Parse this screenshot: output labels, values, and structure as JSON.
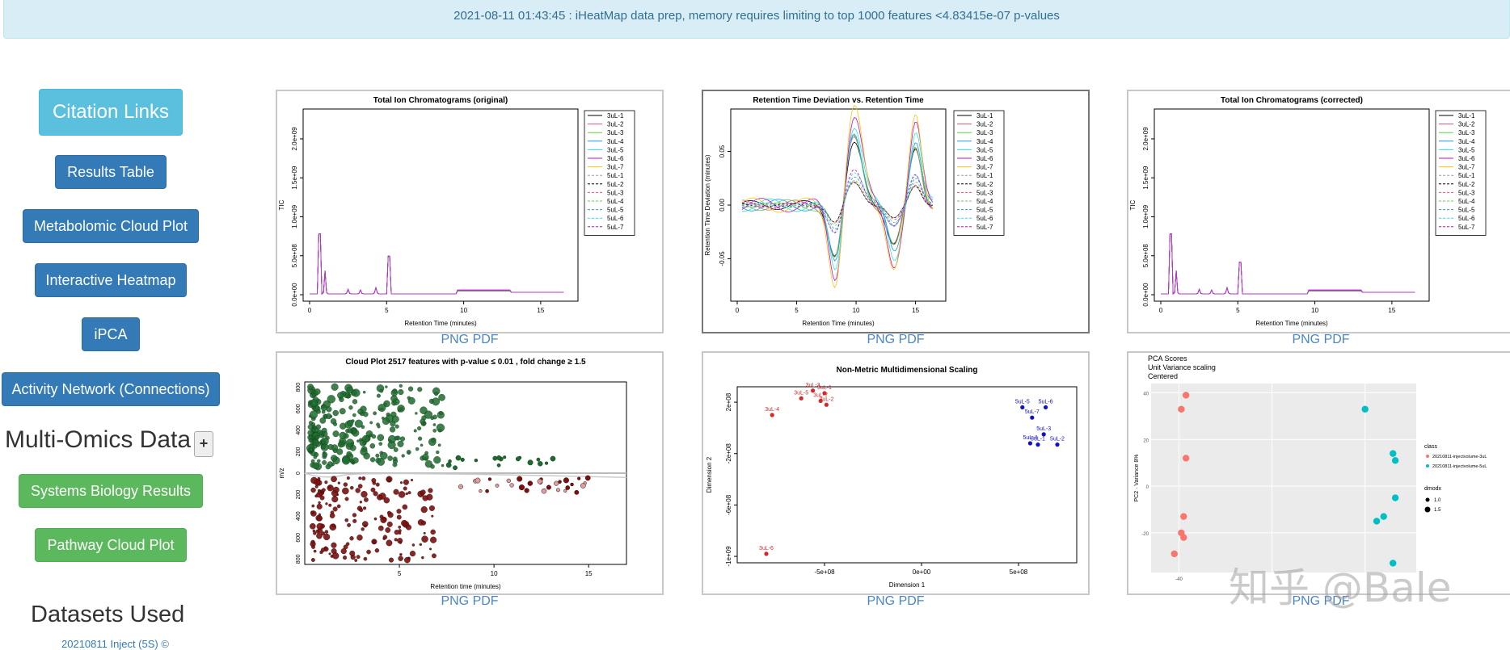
{
  "banner": {
    "message": "2021-08-11 01:43:45 : iHeatMap data prep, memory requires limiting to top 1000 features <4.83415e-07 p-values"
  },
  "sidebar": {
    "citation_label": "Citation Links",
    "results_table_label": "Results Table",
    "metabolomic_cloud_label": "Metabolomic Cloud Plot",
    "interactive_heatmap_label": "Interactive Heatmap",
    "ipca_label": "iPCA",
    "activity_network_label": "Activity Network (Connections)",
    "multi_omics_title": "Multi-Omics Data",
    "multi_omics_toggle": "+",
    "systems_biology_label": "Systems Biology Results",
    "pathway_cloud_label": "Pathway Cloud Plot",
    "datasets_title": "Datasets Used",
    "dataset_link": "20210811 Inject (5S) ©"
  },
  "colors": {
    "info_bg": "#d9edf7",
    "info_text": "#31708f",
    "primary": "#337ab7",
    "success": "#5cb85c",
    "citation": "#5bc0de",
    "link": "#4a86c6"
  },
  "links": {
    "png": "PNG",
    "pdf": "PDF"
  },
  "watermark": "知乎 @Bale",
  "legend_samples": [
    "3uL-1",
    "3uL-2",
    "3uL-3",
    "3uL-4",
    "3uL-5",
    "3uL-6",
    "3uL-7",
    "5uL-1",
    "5uL-2",
    "5uL-3",
    "5uL-4",
    "5uL-5",
    "5uL-6",
    "5uL-7"
  ],
  "chart_data": [
    {
      "type": "line",
      "title": "Total Ion Chromatograms (original)",
      "xlabel": "Retention Time (minutes)",
      "ylabel": "TIC",
      "xlim": [
        0,
        17
      ],
      "ylim": [
        0,
        2300000000.0
      ],
      "xticks": [
        "0",
        "5",
        "10",
        "15"
      ],
      "yticks": [
        "0.0e+00",
        "5.0e+08",
        "1.0e+09",
        "1.5e+09",
        "2.0e+09"
      ],
      "peaks": [
        {
          "x": 0.7,
          "y": 2200000000.0
        },
        {
          "x": 5.1,
          "y": 1000000000.0
        }
      ],
      "plateau": {
        "x": [
          9.5,
          13
        ],
        "y": 60000000.0
      }
    },
    {
      "type": "line",
      "title": "Retention Time Deviation vs. Retention Time",
      "xlabel": "Retention Time (minutes)",
      "ylabel": "Retention Time Deviation (minutes)",
      "xlim": [
        0,
        17
      ],
      "ylim": [
        -0.085,
        0.085
      ],
      "xticks": [
        "0",
        "5",
        "10",
        "15"
      ],
      "yticks": [
        "-0.05",
        "0.00",
        "0.05"
      ]
    },
    {
      "type": "line",
      "title": "Total Ion Chromatograms (corrected)",
      "xlabel": "Retention Time (minutes)",
      "ylabel": "TIC",
      "xlim": [
        0,
        17
      ],
      "ylim": [
        0,
        2300000000.0
      ],
      "xticks": [
        "0",
        "5",
        "10",
        "15"
      ],
      "yticks": [
        "0.0e+00",
        "5.0e+08",
        "1.0e+09",
        "1.5e+09",
        "2.0e+09"
      ]
    },
    {
      "type": "scatter",
      "title": "Cloud Plot    2517 features with p-value ≤ 0.01 , fold change ≥ 1.5",
      "xlabel": "Retention time (minutes)",
      "ylabel": "m/z",
      "xlim": [
        0,
        17
      ],
      "ylim": [
        -850,
        850
      ],
      "xticks": [
        "5",
        "10",
        "15"
      ],
      "yticks_up": [
        "0",
        "200",
        "400",
        "600",
        "800"
      ],
      "yticks_down": [
        "200",
        "400",
        "600",
        "800"
      ],
      "up_color": "#1f6b2f",
      "down_color": "#7a1010"
    },
    {
      "type": "scatter",
      "title": "Non-Metric Multidimensional Scaling",
      "xlabel": "Dimension 1",
      "ylabel": "Dimension 2",
      "xlim": [
        -950000000.0,
        800000000.0
      ],
      "ylim": [
        -1050000000.0,
        320000000.0
      ],
      "xticks": [
        "-5e+08",
        "0e+00",
        "5e+08"
      ],
      "yticks": [
        "2e+08",
        "-2e+08",
        "-6e+08",
        "-1e+09"
      ],
      "points": [
        {
          "label": "3uL-1",
          "x": -500000000.0,
          "y": 270000000.0,
          "group": "3uL"
        },
        {
          "label": "3uL-2",
          "x": -490000000.0,
          "y": 180000000.0,
          "group": "3uL"
        },
        {
          "label": "3uL-3",
          "x": -560000000.0,
          "y": 290000000.0,
          "group": "3uL"
        },
        {
          "label": "3uL-4",
          "x": -770000000.0,
          "y": 100000000.0,
          "group": "3uL"
        },
        {
          "label": "3uL-5",
          "x": -620000000.0,
          "y": 230000000.0,
          "group": "3uL"
        },
        {
          "label": "3uL-6",
          "x": -800000000.0,
          "y": -980000000.0,
          "group": "3uL"
        },
        {
          "label": "3uL-7",
          "x": -520000000.0,
          "y": 210000000.0,
          "group": "3uL"
        },
        {
          "label": "5uL-1",
          "x": 600000000.0,
          "y": -130000000.0,
          "group": "5uL"
        },
        {
          "label": "5uL-2",
          "x": 700000000.0,
          "y": -130000000.0,
          "group": "5uL"
        },
        {
          "label": "5uL-3",
          "x": 630000000.0,
          "y": -50000000.0,
          "group": "5uL"
        },
        {
          "label": "5uL-4",
          "x": 560000000.0,
          "y": -120000000.0,
          "group": "5uL"
        },
        {
          "label": "5uL-5",
          "x": 520000000.0,
          "y": 160000000.0,
          "group": "5uL"
        },
        {
          "label": "5uL-6",
          "x": 640000000.0,
          "y": 160000000.0,
          "group": "5uL"
        },
        {
          "label": "5uL-7",
          "x": 570000000.0,
          "y": 80000000.0,
          "group": "5uL"
        }
      ]
    },
    {
      "type": "scatter",
      "title": "PCA Scores",
      "subtitle": [
        "Unit Variance scaling",
        "Centered"
      ],
      "ylabel": "PC2 · Variance 8%",
      "xlim": [
        -52,
        62
      ],
      "ylim": [
        -37,
        44
      ],
      "xticks": [
        "-40"
      ],
      "yticks": [
        "40",
        "20",
        "0",
        "-20"
      ],
      "legend": {
        "title": "class",
        "items": [
          {
            "label": "20210811-injectvolume-3uL",
            "color": "#f8766d"
          },
          {
            "label": "20210811-injectvolume-5uL",
            "color": "#00bfc4"
          }
        ],
        "size_title": "dmodx",
        "size_items": [
          "1.0",
          "1.5"
        ]
      },
      "points": [
        {
          "x": -37,
          "y": 39,
          "group": "3uL"
        },
        {
          "x": -39,
          "y": 33,
          "group": "3uL"
        },
        {
          "x": -37,
          "y": 12,
          "group": "3uL"
        },
        {
          "x": -38,
          "y": -13,
          "group": "3uL"
        },
        {
          "x": -39,
          "y": -20,
          "group": "3uL"
        },
        {
          "x": -38,
          "y": -22,
          "group": "3uL"
        },
        {
          "x": -42,
          "y": -29,
          "group": "3uL"
        },
        {
          "x": 40,
          "y": 33,
          "group": "5uL"
        },
        {
          "x": 52,
          "y": 14,
          "group": "5uL"
        },
        {
          "x": 53,
          "y": 11,
          "group": "5uL"
        },
        {
          "x": 53,
          "y": -5,
          "group": "5uL"
        },
        {
          "x": 48,
          "y": -13,
          "group": "5uL"
        },
        {
          "x": 45,
          "y": -15,
          "group": "5uL"
        },
        {
          "x": 52,
          "y": -33,
          "group": "5uL"
        }
      ]
    }
  ]
}
